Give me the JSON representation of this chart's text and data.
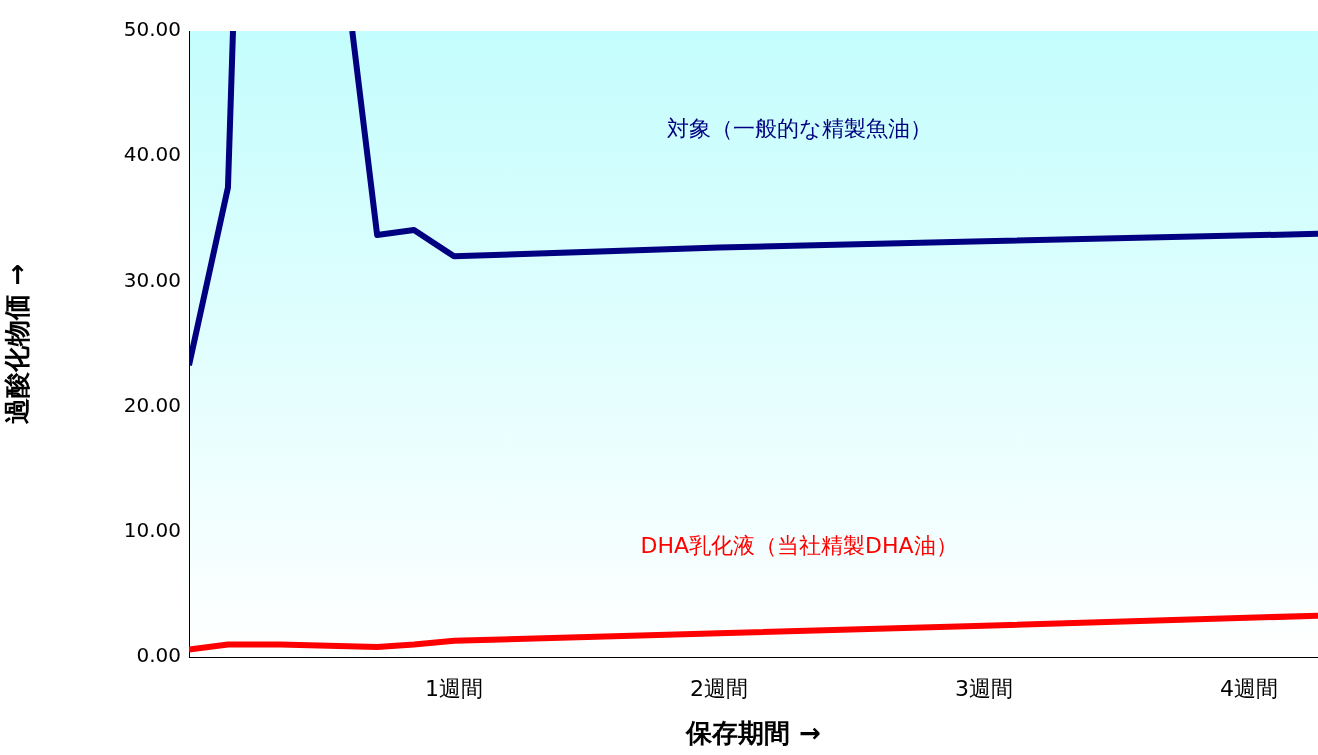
{
  "chart_data": {
    "type": "line",
    "xlabel": "保存期間 →",
    "ylabel": "過酸化物価 →",
    "xlim": [
      0,
      4.26
    ],
    "xticks": [
      {
        "value": 1,
        "label": "1週間"
      },
      {
        "value": 2,
        "label": "2週間"
      },
      {
        "value": 3,
        "label": "3週間"
      },
      {
        "value": 4,
        "label": "4週間"
      }
    ],
    "ylim": [
      0,
      50
    ],
    "yticks": [
      {
        "value": 0,
        "label": "0.00"
      },
      {
        "value": 10,
        "label": "10.00"
      },
      {
        "value": 20,
        "label": "20.00"
      },
      {
        "value": 30,
        "label": "30.00"
      },
      {
        "value": 40,
        "label": "40.00"
      },
      {
        "value": 50,
        "label": "50.00"
      }
    ],
    "grid": false,
    "legend": false,
    "marker": "none",
    "line_style": "solid",
    "series": [
      {
        "name": "対象（一般的な精製魚油）",
        "color": "#000080",
        "x": [
          0,
          0.147,
          0.166,
          0.43,
          0.616,
          0.71,
          0.849,
          1.0,
          2,
          3,
          4.26
        ],
        "values": [
          23.3,
          37.5,
          50,
          null,
          50,
          33.7,
          34.1,
          32.0,
          32.7,
          33.2,
          33.8
        ]
      },
      {
        "name": "DHA乳化液（当社精製DHA油）",
        "color": "#ff0000",
        "x": [
          0,
          0.147,
          0.343,
          0.71,
          0.849,
          1.0,
          2,
          3,
          4.26
        ],
        "values": [
          0.6,
          1.0,
          1.0,
          0.8,
          1.0,
          1.3,
          1.9,
          2.5,
          3.3
        ]
      }
    ]
  }
}
